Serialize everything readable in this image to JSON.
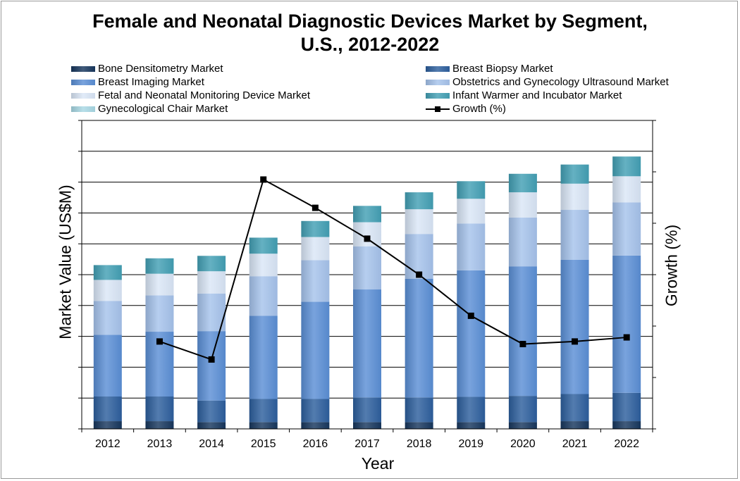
{
  "chart_data": {
    "type": "bar",
    "stacked": true,
    "title": "Female and Neonatal Diagnostic Devices Market by Segment, U.S., 2012-2022",
    "title_lines": [
      "Female and Neonatal Diagnostic Devices Market by Segment,",
      "U.S., 2012-2022"
    ],
    "xlabel": "Year",
    "ylabel": "Market Value (US$M)",
    "y2label": "Growth (%)",
    "ylim": [
      0,
      10
    ],
    "y2lim": [
      0,
      6
    ],
    "y_tick_labels_shown": false,
    "grid": true,
    "legend_placement": "top",
    "categories": [
      "2012",
      "2013",
      "2014",
      "2015",
      "2016",
      "2017",
      "2018",
      "2019",
      "2020",
      "2021",
      "2022"
    ],
    "series": [
      {
        "name": "Bone Densitometry Market",
        "color": "#17375e",
        "values": [
          0.25,
          0.25,
          0.22,
          0.22,
          0.22,
          0.22,
          0.22,
          0.22,
          0.22,
          0.25,
          0.25
        ]
      },
      {
        "name": "Breast Biopsy Market",
        "color": "#2d5f9e",
        "values": [
          0.8,
          0.8,
          0.7,
          0.75,
          0.75,
          0.8,
          0.8,
          0.82,
          0.85,
          0.88,
          0.92
        ]
      },
      {
        "name": "Breast Imaging Market",
        "color": "#5b8fd6",
        "values": [
          2.0,
          2.1,
          2.25,
          2.7,
          3.15,
          3.5,
          3.85,
          4.1,
          4.2,
          4.35,
          4.45
        ]
      },
      {
        "name": "Obstetrics and Gynecology Ultrasound Market",
        "color": "#a6c3ec",
        "values": [
          1.1,
          1.18,
          1.22,
          1.28,
          1.35,
          1.4,
          1.45,
          1.52,
          1.58,
          1.62,
          1.72
        ]
      },
      {
        "name": "Fetal and Neonatal Monitoring Device Market",
        "color": "#dae6f7",
        "values": [
          0.68,
          0.7,
          0.72,
          0.73,
          0.75,
          0.78,
          0.8,
          0.8,
          0.82,
          0.85,
          0.85
        ]
      },
      {
        "name": "Infant Warmer and Incubator Market",
        "color": "#43a0b5",
        "values": [
          0.48,
          0.5,
          0.5,
          0.52,
          0.52,
          0.53,
          0.55,
          0.57,
          0.6,
          0.62,
          0.64
        ]
      },
      {
        "name": "Gynecological Chair Market",
        "color": "#a8d8e4",
        "values": [
          0,
          0,
          0,
          0,
          0,
          0,
          0,
          0,
          0,
          0,
          0
        ]
      }
    ],
    "growth": {
      "name": "Growth (%)",
      "color": "#000000",
      "values": [
        null,
        1.7,
        1.35,
        4.85,
        4.3,
        3.7,
        3.0,
        2.2,
        1.65,
        1.7,
        1.78
      ]
    }
  }
}
